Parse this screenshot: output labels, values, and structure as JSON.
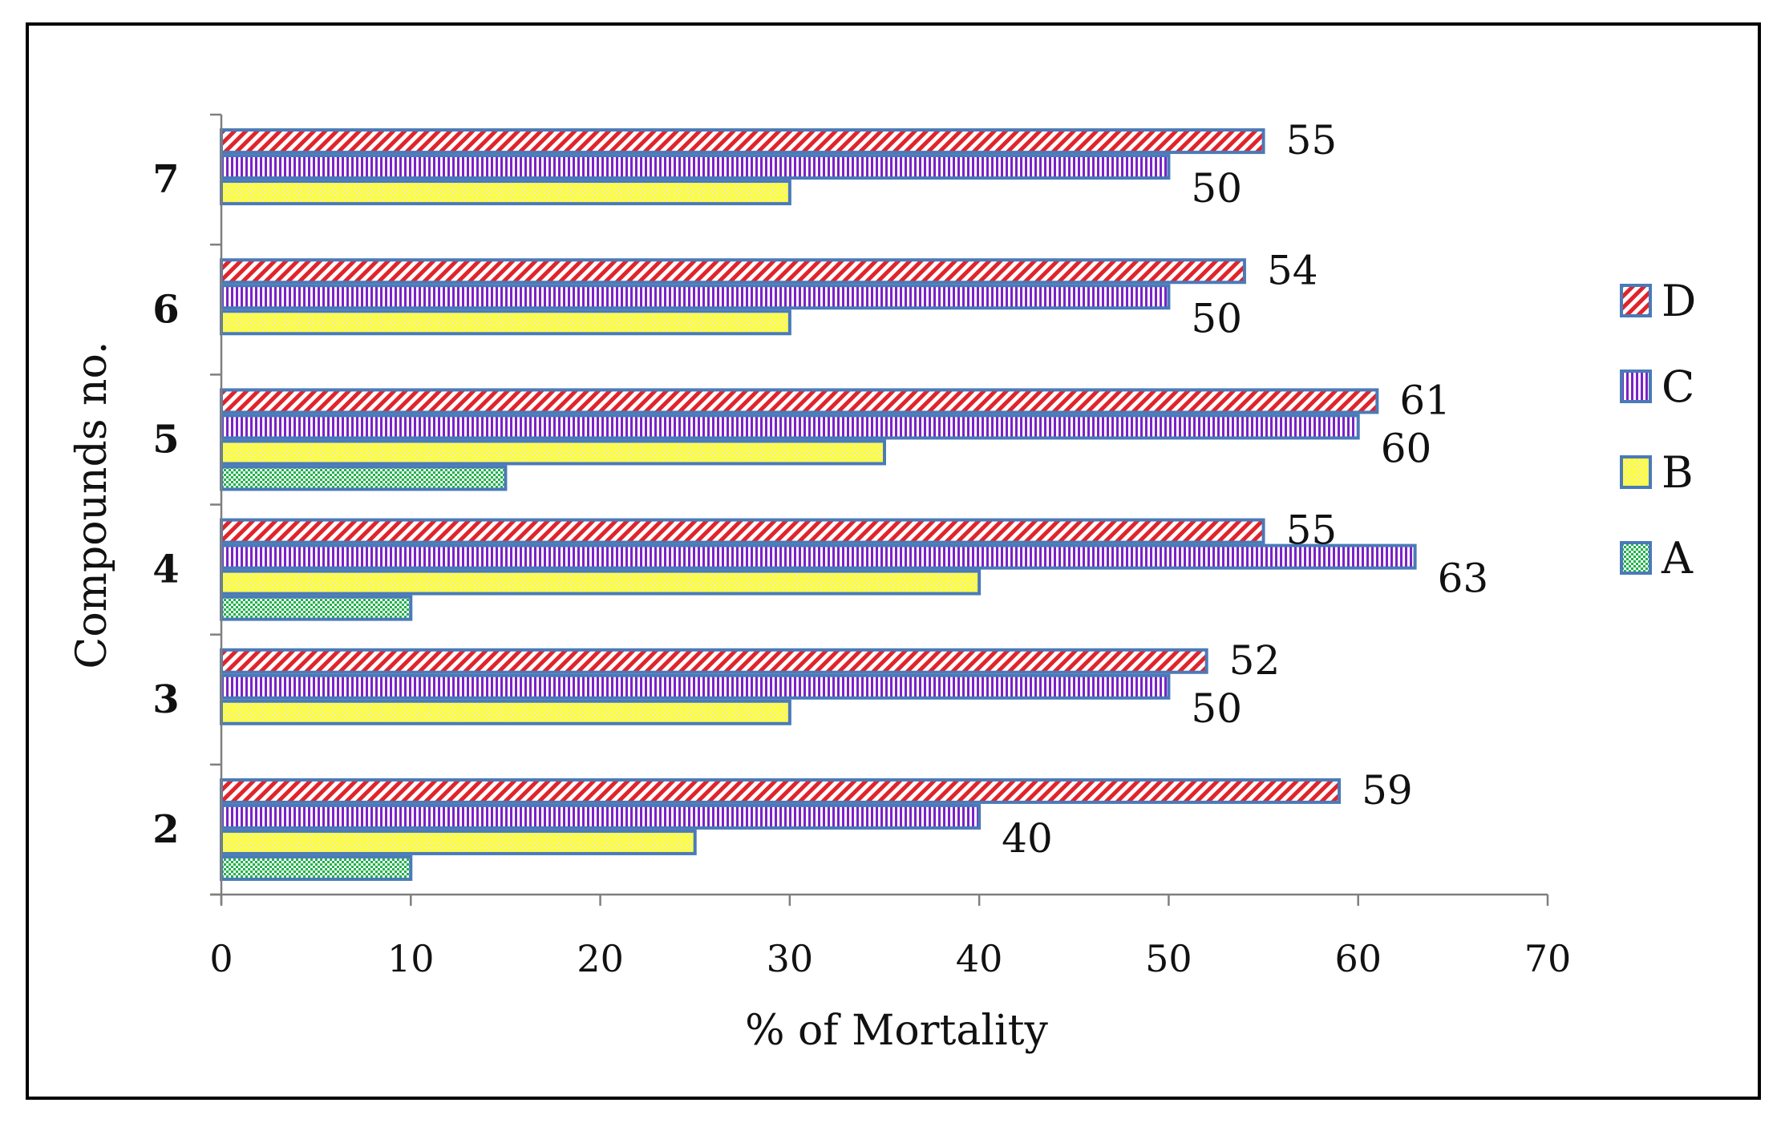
{
  "chart_data": {
    "type": "bar",
    "orientation": "horizontal",
    "title": "",
    "xlabel": "% of Mortality",
    "ylabel": "Compounds no.",
    "xlim": [
      0,
      70
    ],
    "x_ticks": [
      0,
      10,
      20,
      30,
      40,
      50,
      60,
      70
    ],
    "grid": false,
    "legend_position": "right",
    "categories": [
      "2",
      "3",
      "4",
      "5",
      "6",
      "7"
    ],
    "series": [
      {
        "name": "A",
        "color": "#22b14c",
        "pattern": "dots",
        "values": [
          10,
          null,
          10,
          15,
          null,
          null
        ]
      },
      {
        "name": "B",
        "color": "#ffff33",
        "pattern": "dots",
        "values": [
          25,
          30,
          40,
          35,
          30,
          30
        ]
      },
      {
        "name": "C",
        "color": "#7a22c8",
        "pattern": "vertical-lines",
        "values": [
          40,
          50,
          63,
          60,
          50,
          50
        ]
      },
      {
        "name": "D",
        "color": "#e0242c",
        "pattern": "diagonal-lines",
        "values": [
          59,
          52,
          55,
          61,
          54,
          55
        ]
      }
    ],
    "data_labels": [
      {
        "series": "D",
        "category": "2",
        "text": "59"
      },
      {
        "series": "C",
        "category": "2",
        "text": "40"
      },
      {
        "series": "D",
        "category": "3",
        "text": "52"
      },
      {
        "series": "C",
        "category": "3",
        "text": "50"
      },
      {
        "series": "D",
        "category": "4",
        "text": "55"
      },
      {
        "series": "C",
        "category": "4",
        "text": "63"
      },
      {
        "series": "D",
        "category": "5",
        "text": "61"
      },
      {
        "series": "C",
        "category": "5",
        "text": "60"
      },
      {
        "series": "D",
        "category": "6",
        "text": "54"
      },
      {
        "series": "C",
        "category": "6",
        "text": "50"
      },
      {
        "series": "D",
        "category": "7",
        "text": "55"
      },
      {
        "series": "C",
        "category": "7",
        "text": "50"
      }
    ],
    "legend_order": [
      "D",
      "C",
      "B",
      "A"
    ]
  }
}
